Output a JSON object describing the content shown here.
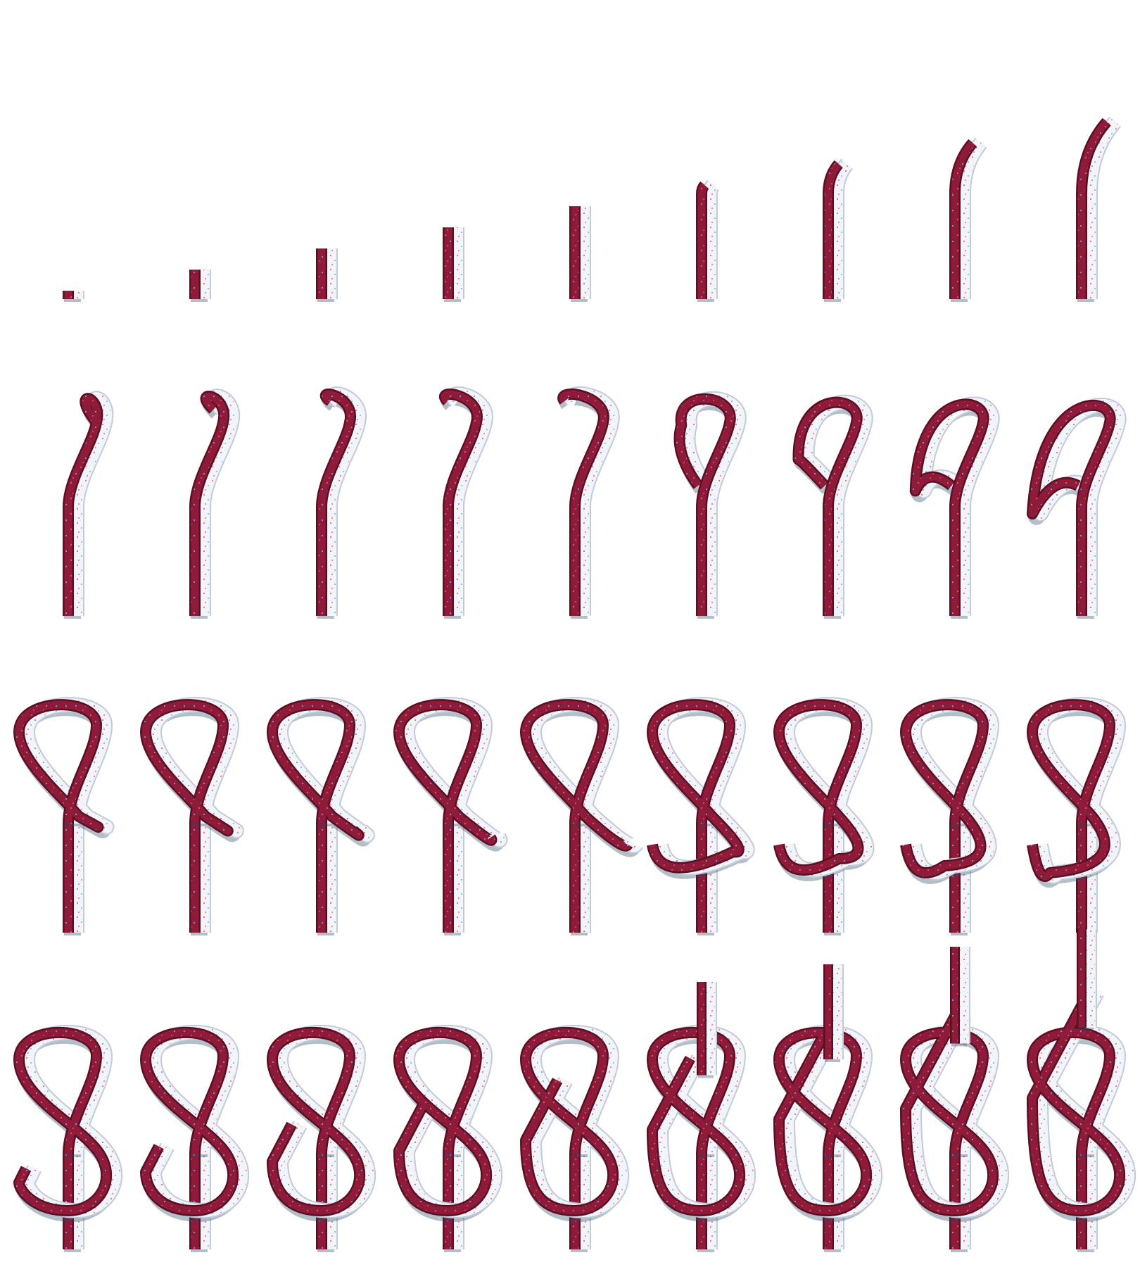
{
  "figure": {
    "rows": 4,
    "columns": 9,
    "frame_count": 36
  },
  "colors": {
    "background": "#ffffff",
    "rope_red": "#8e1b3a",
    "rope_red_dark": "#5a0f23",
    "rope_red_light": "#b8385a",
    "rope_white": "#f1f4f9",
    "rope_white_dark": "#c3cad8",
    "shadow": "#22485e",
    "fleck_red": "#e0506e",
    "fleck_blue": "#7c9ad2"
  },
  "subject": "figure-eight-knot-tying-sequence"
}
